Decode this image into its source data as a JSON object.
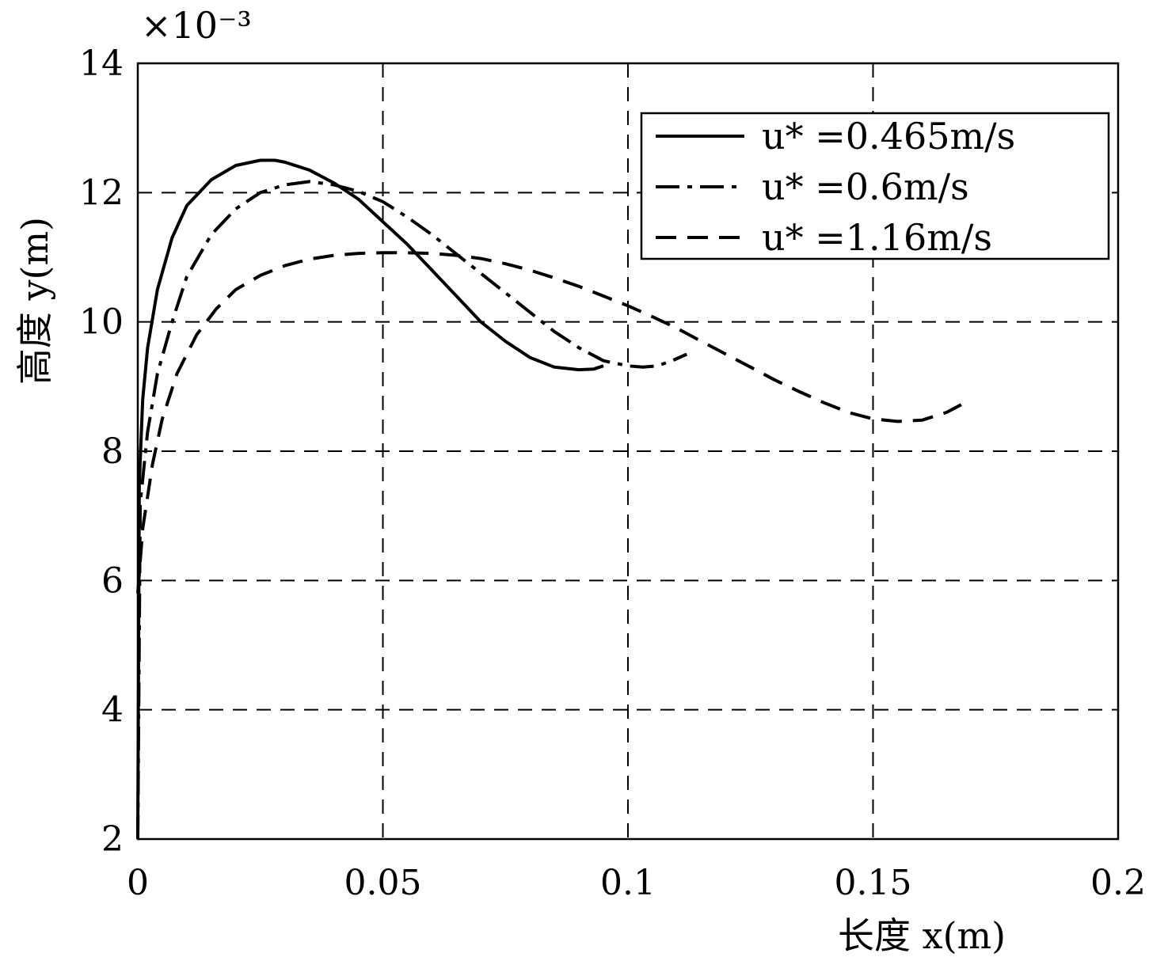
{
  "chart_data": {
    "type": "line",
    "title": "",
    "xlabel": "长度 x(m)",
    "ylabel": "高度 y(m)",
    "y_multiplier": "×10⁻³",
    "xlim": [
      0,
      0.2
    ],
    "ylim": [
      2,
      14
    ],
    "x_ticks": [
      0,
      0.05,
      0.1,
      0.15,
      0.2
    ],
    "x_tick_labels": [
      "0",
      "0.05",
      "0.1",
      "0.15",
      "0.2"
    ],
    "y_ticks": [
      2,
      4,
      6,
      8,
      10,
      12,
      14
    ],
    "y_tick_labels": [
      "2",
      "4",
      "6",
      "8",
      "10",
      "12",
      "14"
    ],
    "grid": true,
    "legend_position": "top-right",
    "series": [
      {
        "name": "u* =0.465m/s",
        "style": "solid",
        "x": [
          0,
          0.0003,
          0.001,
          0.002,
          0.004,
          0.007,
          0.01,
          0.015,
          0.02,
          0.025,
          0.028,
          0.03,
          0.035,
          0.04,
          0.045,
          0.05,
          0.055,
          0.06,
          0.065,
          0.07,
          0.075,
          0.08,
          0.085,
          0.09,
          0.093,
          0.095
        ],
        "y": [
          2.0,
          7.5,
          8.8,
          9.6,
          10.5,
          11.3,
          11.8,
          12.2,
          12.42,
          12.5,
          12.5,
          12.47,
          12.35,
          12.15,
          11.9,
          11.55,
          11.2,
          10.8,
          10.4,
          10.0,
          9.7,
          9.45,
          9.3,
          9.26,
          9.27,
          9.32
        ]
      },
      {
        "name": "u* =0.6m/s",
        "style": "dash-dot",
        "x": [
          0,
          0.0005,
          0.002,
          0.004,
          0.007,
          0.01,
          0.015,
          0.02,
          0.025,
          0.03,
          0.035,
          0.04,
          0.045,
          0.05,
          0.055,
          0.06,
          0.065,
          0.07,
          0.075,
          0.08,
          0.085,
          0.09,
          0.095,
          0.1,
          0.103,
          0.106,
          0.109,
          0.112
        ],
        "y": [
          2.0,
          7.2,
          8.3,
          9.2,
          10.0,
          10.7,
          11.35,
          11.75,
          12.0,
          12.12,
          12.17,
          12.12,
          12.02,
          11.86,
          11.62,
          11.35,
          11.05,
          10.75,
          10.45,
          10.15,
          9.85,
          9.6,
          9.4,
          9.32,
          9.3,
          9.32,
          9.4,
          9.5
        ]
      },
      {
        "name": "u* =1.16m/s",
        "style": "dashed",
        "x": [
          0,
          0.001,
          0.003,
          0.005,
          0.008,
          0.012,
          0.016,
          0.02,
          0.025,
          0.03,
          0.035,
          0.04,
          0.045,
          0.05,
          0.055,
          0.06,
          0.065,
          0.07,
          0.075,
          0.08,
          0.085,
          0.09,
          0.095,
          0.1,
          0.105,
          0.11,
          0.115,
          0.12,
          0.125,
          0.13,
          0.135,
          0.14,
          0.145,
          0.15,
          0.155,
          0.16,
          0.165,
          0.168
        ],
        "y": [
          5.8,
          6.8,
          7.8,
          8.5,
          9.2,
          9.8,
          10.2,
          10.5,
          10.72,
          10.87,
          10.97,
          11.03,
          11.06,
          11.07,
          11.07,
          11.06,
          11.03,
          10.98,
          10.9,
          10.8,
          10.68,
          10.55,
          10.4,
          10.25,
          10.08,
          9.9,
          9.7,
          9.5,
          9.3,
          9.1,
          8.92,
          8.75,
          8.6,
          8.5,
          8.46,
          8.48,
          8.6,
          8.72
        ]
      }
    ]
  }
}
